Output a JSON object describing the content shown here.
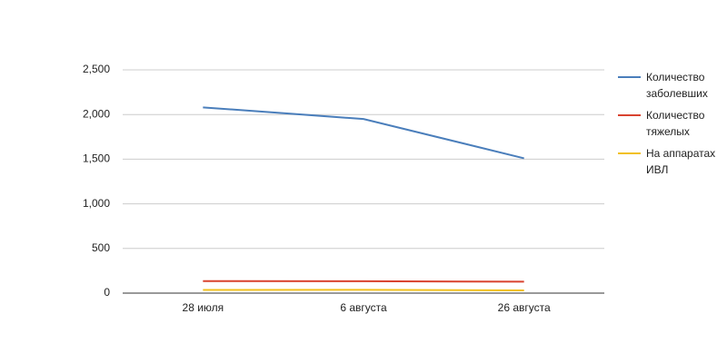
{
  "chart_data": {
    "type": "line",
    "categories": [
      "28 июля",
      "6 августа",
      "26 августа"
    ],
    "series": [
      {
        "name": "Количество заболевших",
        "color": "#4a7ebb",
        "values": [
          2080,
          1950,
          1510
        ]
      },
      {
        "name": "Количество тяжелых",
        "color": "#d9432f",
        "values": [
          135,
          133,
          128
        ]
      },
      {
        "name": "На аппаратах ИВЛ",
        "color": "#f2c01e",
        "values": [
          35,
          37,
          30
        ]
      }
    ],
    "ylim": [
      0,
      2500
    ],
    "yticks": [
      0,
      500,
      {
        "value": 1000,
        "label": "1,000"
      },
      {
        "value": 1500,
        "label": "1,500"
      },
      {
        "value": 2000,
        "label": "2,000"
      },
      {
        "value": 2500,
        "label": "2,500"
      }
    ],
    "grid": true,
    "legend": "right"
  }
}
